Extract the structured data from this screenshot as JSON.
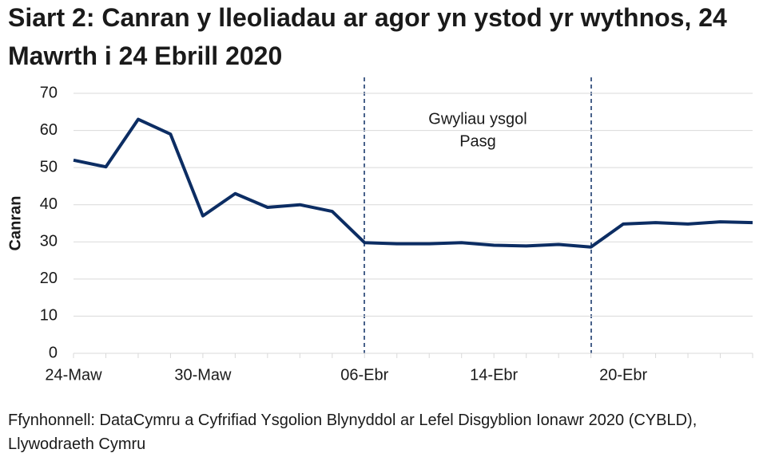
{
  "chart_data": {
    "type": "line",
    "title": "Siart 2: Canran y lleoliadau ar agor yn ystod yr wythnos, 24 Mawrth i 24 Ebrill 2020",
    "y_label": "Canran",
    "source": "Ffynhonnell: DataCymru a Cyfrifiad Ysgolion Blynyddol ar Lefel Disgyblion Ionawr 2020 (CYBLD), Llywodraeth Cymru",
    "annotation": [
      "Gwyliau ysgol",
      "Pasg"
    ],
    "categories": [
      "24-Maw",
      null,
      null,
      null,
      "30-Maw",
      null,
      null,
      null,
      null,
      "06-Ebr",
      null,
      null,
      null,
      "14-Ebr",
      null,
      null,
      null,
      "20-Ebr",
      null,
      null,
      null,
      null
    ],
    "values": [
      52,
      50.2,
      63,
      59,
      37,
      43,
      39.3,
      40,
      38.2,
      29.8,
      29.5,
      29.5,
      29.8,
      29.1,
      28.9,
      29.3,
      28.6,
      34.8,
      35.2,
      34.8,
      35.4,
      35.2
    ],
    "color": "#0c2d63",
    "ylim": [
      0,
      70
    ],
    "yticks": [
      0,
      10,
      20,
      30,
      40,
      50,
      60,
      70
    ],
    "grid": true
  }
}
